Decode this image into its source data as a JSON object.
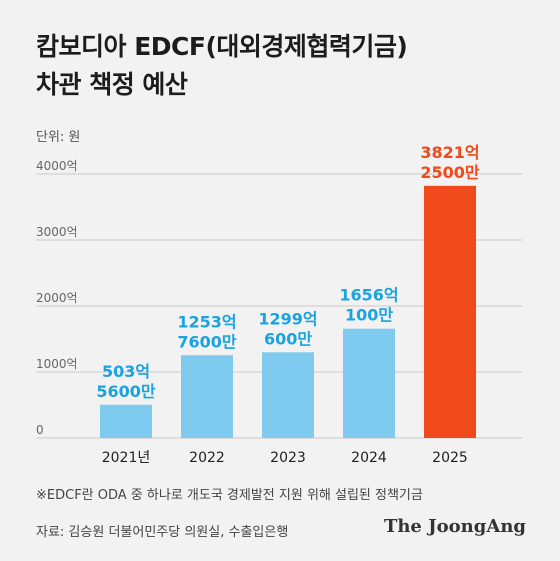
{
  "header": {
    "title_line1": "캄보디아 EDCF(대외경제협력기금)",
    "title_line2": "차관 책정 예산",
    "unit": "단위: 원"
  },
  "footer": {
    "note": "※EDCF란 ODA 중 하나로 개도국 경제발전 지원 위해 설립된 정책기금",
    "source": "자료: 김승원 더불어민주당 의원실, 수출입은행",
    "brand": "The JoongAng"
  },
  "colors": {
    "bar_default": "#7ecbef",
    "bar_highlight": "#f04a1c",
    "label_default": "#1aa3e0",
    "label_highlight": "#f04a1c",
    "axis_text": "#666666",
    "grid": "#c9c9c9"
  },
  "chart_data": {
    "type": "bar",
    "categories": [
      "2021년",
      "2022",
      "2023",
      "2024",
      "2025"
    ],
    "values": [
      503.56,
      1253.76,
      1299.06,
      1656.01,
      3821.25
    ],
    "data_labels": [
      [
        "503억",
        "5600만"
      ],
      [
        "1253억",
        "7600만"
      ],
      [
        "1299억",
        "600만"
      ],
      [
        "1656억",
        "100만"
      ],
      [
        "3821억",
        "2500만"
      ]
    ],
    "highlight_index": 4,
    "y_ticks": [
      0,
      1000,
      2000,
      3000,
      4000
    ],
    "y_tick_labels": [
      "0",
      "1000억",
      "2000억",
      "3000억",
      "4000억"
    ],
    "ylim": [
      0,
      4000
    ],
    "grid": true,
    "xlabel": "",
    "ylabel": ""
  }
}
